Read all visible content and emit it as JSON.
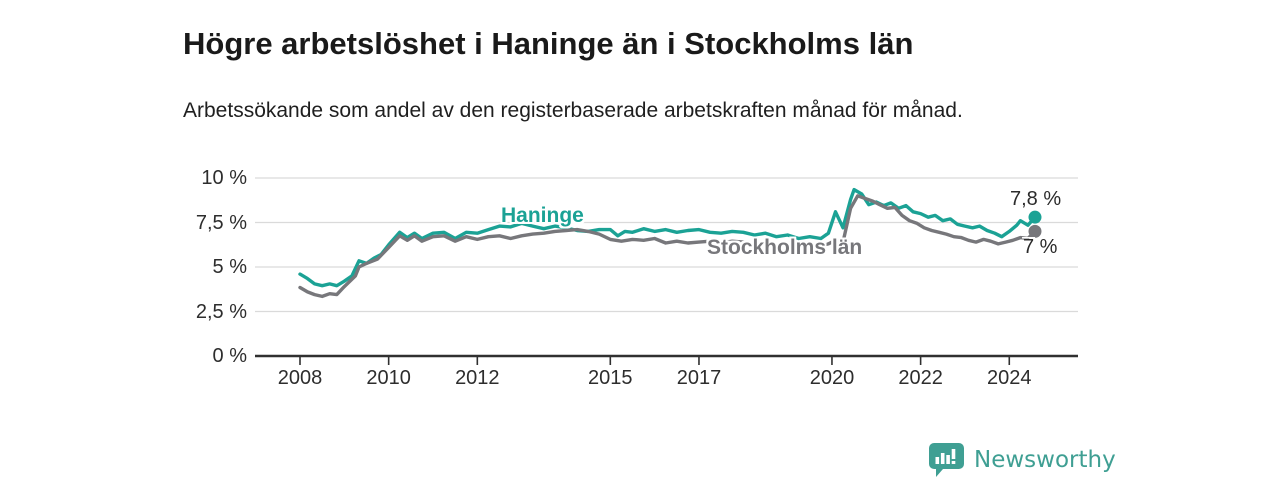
{
  "header": {
    "title": "Högre arbetslöshet i Haninge än i Stockholms län",
    "subtitle": "Arbetssökande som andel av den registerbaserade arbetskraften månad för månad."
  },
  "chart_data": {
    "type": "line",
    "title": "Högre arbetslöshet i Haninge än i Stockholms län",
    "unit": "%",
    "grid": true,
    "legend": "inline-labels",
    "ylim": [
      0,
      10
    ],
    "xlim": [
      2007,
      2025.5
    ],
    "y_ticks": [
      {
        "value": 10,
        "label": "10 %"
      },
      {
        "value": 7.5,
        "label": "7,5 %"
      },
      {
        "value": 5,
        "label": "5 %"
      },
      {
        "value": 2.5,
        "label": "2,5 %"
      },
      {
        "value": 0,
        "label": "0 %"
      }
    ],
    "x_ticks": [
      {
        "year": 2008,
        "label": "2008"
      },
      {
        "year": 2010,
        "label": "2010"
      },
      {
        "year": 2012,
        "label": "2012"
      },
      {
        "year": 2015,
        "label": "2015"
      },
      {
        "year": 2017,
        "label": "2017"
      },
      {
        "year": 2020,
        "label": "2020"
      },
      {
        "year": 2022,
        "label": "2022"
      },
      {
        "year": 2024,
        "label": "2024"
      }
    ],
    "series": [
      {
        "name": "Haninge",
        "color": "#1ba295",
        "end_label": "7,8 %",
        "end_value": 7.8,
        "points": [
          [
            2008.0,
            4.6
          ],
          [
            2008.17,
            4.35
          ],
          [
            2008.33,
            4.05
          ],
          [
            2008.5,
            3.95
          ],
          [
            2008.67,
            4.05
          ],
          [
            2008.83,
            3.95
          ],
          [
            2009.0,
            4.2
          ],
          [
            2009.17,
            4.5
          ],
          [
            2009.33,
            5.35
          ],
          [
            2009.5,
            5.2
          ],
          [
            2009.67,
            5.5
          ],
          [
            2009.83,
            5.7
          ],
          [
            2010.0,
            6.25
          ],
          [
            2010.25,
            6.95
          ],
          [
            2010.42,
            6.65
          ],
          [
            2010.58,
            6.9
          ],
          [
            2010.75,
            6.6
          ],
          [
            2011.0,
            6.9
          ],
          [
            2011.25,
            6.95
          ],
          [
            2011.5,
            6.6
          ],
          [
            2011.75,
            6.95
          ],
          [
            2012.0,
            6.9
          ],
          [
            2012.25,
            7.1
          ],
          [
            2012.5,
            7.3
          ],
          [
            2012.75,
            7.25
          ],
          [
            2013.0,
            7.45
          ],
          [
            2013.25,
            7.3
          ],
          [
            2013.5,
            7.15
          ],
          [
            2013.75,
            7.3
          ],
          [
            2014.0,
            7.2
          ],
          [
            2014.25,
            7.05
          ],
          [
            2014.5,
            7.0
          ],
          [
            2014.75,
            7.1
          ],
          [
            2015.0,
            7.1
          ],
          [
            2015.17,
            6.75
          ],
          [
            2015.33,
            7.0
          ],
          [
            2015.5,
            6.95
          ],
          [
            2015.75,
            7.15
          ],
          [
            2016.0,
            7.0
          ],
          [
            2016.25,
            7.1
          ],
          [
            2016.5,
            6.95
          ],
          [
            2016.75,
            7.05
          ],
          [
            2017.0,
            7.1
          ],
          [
            2017.25,
            6.95
          ],
          [
            2017.5,
            6.9
          ],
          [
            2017.75,
            7.0
          ],
          [
            2018.0,
            6.95
          ],
          [
            2018.25,
            6.8
          ],
          [
            2018.5,
            6.9
          ],
          [
            2018.75,
            6.7
          ],
          [
            2019.0,
            6.8
          ],
          [
            2019.25,
            6.6
          ],
          [
            2019.5,
            6.7
          ],
          [
            2019.75,
            6.6
          ],
          [
            2019.92,
            6.9
          ],
          [
            2020.08,
            8.1
          ],
          [
            2020.25,
            7.2
          ],
          [
            2020.42,
            8.8
          ],
          [
            2020.5,
            9.35
          ],
          [
            2020.67,
            9.1
          ],
          [
            2020.83,
            8.5
          ],
          [
            2021.0,
            8.65
          ],
          [
            2021.17,
            8.45
          ],
          [
            2021.33,
            8.6
          ],
          [
            2021.5,
            8.3
          ],
          [
            2021.67,
            8.45
          ],
          [
            2021.83,
            8.1
          ],
          [
            2022.0,
            8.0
          ],
          [
            2022.17,
            7.8
          ],
          [
            2022.33,
            7.9
          ],
          [
            2022.5,
            7.6
          ],
          [
            2022.67,
            7.7
          ],
          [
            2022.83,
            7.4
          ],
          [
            2023.0,
            7.3
          ],
          [
            2023.17,
            7.2
          ],
          [
            2023.33,
            7.3
          ],
          [
            2023.5,
            7.05
          ],
          [
            2023.67,
            6.9
          ],
          [
            2023.83,
            6.7
          ],
          [
            2024.0,
            7.0
          ],
          [
            2024.17,
            7.35
          ],
          [
            2024.25,
            7.6
          ],
          [
            2024.42,
            7.35
          ],
          [
            2024.58,
            7.8
          ]
        ]
      },
      {
        "name": "Stockholms län",
        "color": "#77777b",
        "end_label": "7 %",
        "end_value": 7.0,
        "points": [
          [
            2008.0,
            3.85
          ],
          [
            2008.17,
            3.6
          ],
          [
            2008.33,
            3.45
          ],
          [
            2008.5,
            3.35
          ],
          [
            2008.67,
            3.5
          ],
          [
            2008.83,
            3.45
          ],
          [
            2009.0,
            3.9
          ],
          [
            2009.25,
            4.5
          ],
          [
            2009.33,
            5.0
          ],
          [
            2009.5,
            5.2
          ],
          [
            2009.75,
            5.45
          ],
          [
            2010.0,
            6.1
          ],
          [
            2010.25,
            6.75
          ],
          [
            2010.42,
            6.5
          ],
          [
            2010.58,
            6.75
          ],
          [
            2010.75,
            6.45
          ],
          [
            2011.0,
            6.7
          ],
          [
            2011.25,
            6.75
          ],
          [
            2011.5,
            6.45
          ],
          [
            2011.75,
            6.7
          ],
          [
            2012.0,
            6.55
          ],
          [
            2012.25,
            6.7
          ],
          [
            2012.5,
            6.75
          ],
          [
            2012.75,
            6.6
          ],
          [
            2013.0,
            6.75
          ],
          [
            2013.25,
            6.85
          ],
          [
            2013.5,
            6.9
          ],
          [
            2013.75,
            7.0
          ],
          [
            2014.0,
            7.05
          ],
          [
            2014.25,
            7.1
          ],
          [
            2014.5,
            7.0
          ],
          [
            2014.75,
            6.85
          ],
          [
            2015.0,
            6.55
          ],
          [
            2015.25,
            6.45
          ],
          [
            2015.5,
            6.55
          ],
          [
            2015.75,
            6.5
          ],
          [
            2016.0,
            6.6
          ],
          [
            2016.25,
            6.35
          ],
          [
            2016.5,
            6.45
          ],
          [
            2016.75,
            6.35
          ],
          [
            2017.0,
            6.4
          ],
          [
            2017.25,
            6.45
          ],
          [
            2017.5,
            6.35
          ],
          [
            2017.75,
            6.45
          ],
          [
            2018.0,
            6.4
          ],
          [
            2018.25,
            6.3
          ],
          [
            2018.5,
            6.4
          ],
          [
            2018.75,
            6.25
          ],
          [
            2019.0,
            6.35
          ],
          [
            2019.25,
            6.2
          ],
          [
            2019.5,
            6.3
          ],
          [
            2019.75,
            6.2
          ],
          [
            2019.92,
            6.3
          ],
          [
            2020.08,
            6.5
          ],
          [
            2020.25,
            6.4
          ],
          [
            2020.42,
            8.3
          ],
          [
            2020.58,
            9.0
          ],
          [
            2020.75,
            8.85
          ],
          [
            2020.92,
            8.7
          ],
          [
            2021.08,
            8.5
          ],
          [
            2021.25,
            8.3
          ],
          [
            2021.42,
            8.35
          ],
          [
            2021.58,
            7.9
          ],
          [
            2021.75,
            7.6
          ],
          [
            2021.92,
            7.45
          ],
          [
            2022.08,
            7.2
          ],
          [
            2022.25,
            7.05
          ],
          [
            2022.42,
            6.95
          ],
          [
            2022.58,
            6.85
          ],
          [
            2022.75,
            6.7
          ],
          [
            2022.92,
            6.65
          ],
          [
            2023.08,
            6.5
          ],
          [
            2023.25,
            6.4
          ],
          [
            2023.42,
            6.55
          ],
          [
            2023.58,
            6.45
          ],
          [
            2023.75,
            6.3
          ],
          [
            2023.92,
            6.4
          ],
          [
            2024.08,
            6.5
          ],
          [
            2024.25,
            6.65
          ],
          [
            2024.42,
            6.6
          ],
          [
            2024.58,
            7.0
          ]
        ]
      }
    ],
    "style": {
      "grid_color": "#dadada",
      "axis_color": "#303030",
      "label_color": "#2d2d2d"
    }
  },
  "footer": {
    "brand": "Newsworthy",
    "brand_color": "#3f9f93"
  }
}
